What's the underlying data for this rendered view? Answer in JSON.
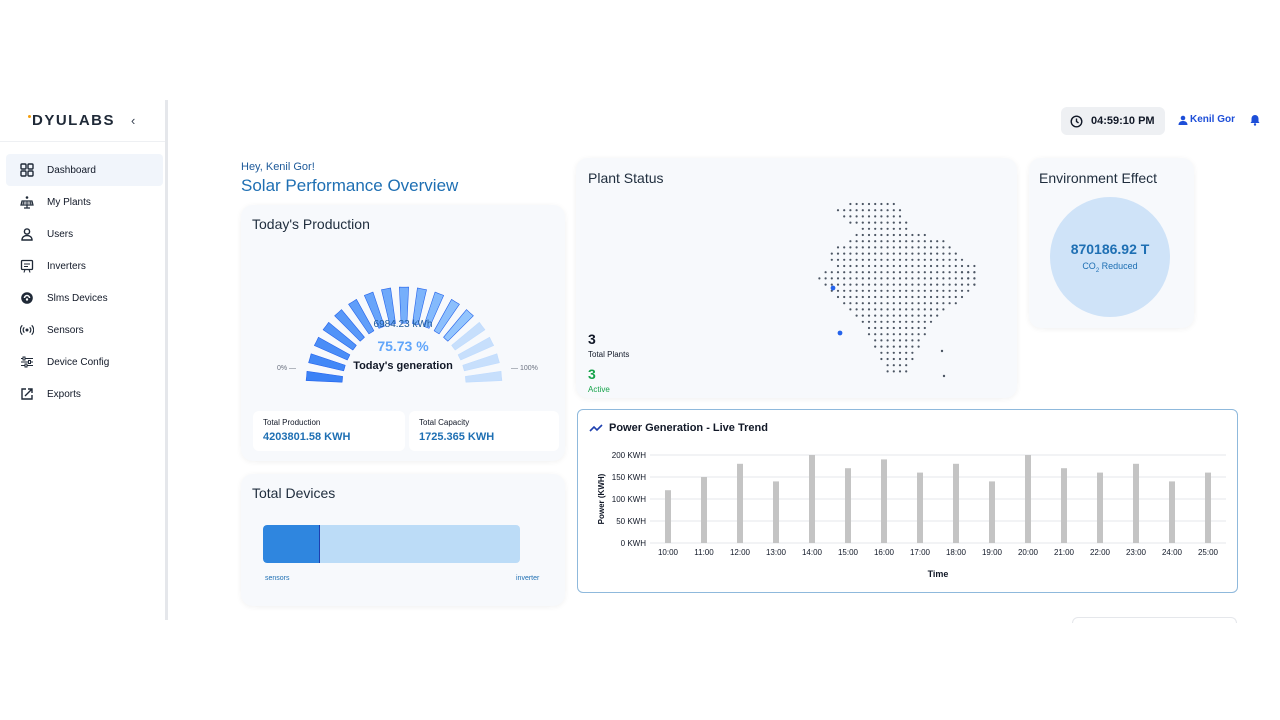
{
  "brand": {
    "logo": "DYULABS",
    "collapse": "‹"
  },
  "sidebar": {
    "items": [
      {
        "label": "Dashboard",
        "icon": "grid-icon"
      },
      {
        "label": "My Plants",
        "icon": "solar-panel-icon"
      },
      {
        "label": "Users",
        "icon": "user-icon"
      },
      {
        "label": "Inverters",
        "icon": "inverter-icon"
      },
      {
        "label": "Slms Devices",
        "icon": "device-icon"
      },
      {
        "label": "Sensors",
        "icon": "sensor-icon"
      },
      {
        "label": "Device Config",
        "icon": "sliders-icon"
      },
      {
        "label": "Exports",
        "icon": "export-icon"
      }
    ]
  },
  "header": {
    "time": "04:59:10 PM",
    "user": "Kenil Gor"
  },
  "greeting": "Hey, Kenil Gor!",
  "title": "Solar Performance Overview",
  "production": {
    "title": "Today's Production",
    "kwh": "6984.23 kWh",
    "percent": "75.73 %",
    "percent_value": 75.73,
    "label": "Today's generation",
    "min_label": "0% —",
    "max_label": "— 100%",
    "total_production_label": "Total Production",
    "total_production_value": "4203801.58 KWH",
    "total_capacity_label": "Total Capacity",
    "total_capacity_value": "1725.365 KWH"
  },
  "devices": {
    "title": "Total Devices",
    "left_label": "sensors",
    "right_label": "inverter",
    "sensors_fraction": 0.22
  },
  "plant_status": {
    "title": "Plant Status",
    "total_plants": "3",
    "total_plants_label": "Total Plants",
    "active": "3",
    "active_label": "Active"
  },
  "environment": {
    "title": "Environment Effect",
    "value": "870186.92 T",
    "label_pre": "CO",
    "label_sub": "2",
    "label_post": " Reduced"
  },
  "colors": {
    "accent": "#1e6fb3",
    "bar": "#c4c4c4",
    "gauge_dark": "#3b82f6",
    "gauge_light": "#bfdbfe"
  },
  "chart_data": {
    "type": "bar",
    "title": "Power Generation - Live Trend",
    "xlabel": "Time",
    "ylabel": "Power (KWH)",
    "categories": [
      "10:00",
      "11:00",
      "12:00",
      "13:00",
      "14:00",
      "15:00",
      "16:00",
      "17:00",
      "18:00",
      "19:00",
      "20:00",
      "21:00",
      "22:00",
      "23:00",
      "24:00",
      "25:00"
    ],
    "values": [
      120,
      150,
      180,
      140,
      200,
      170,
      190,
      160,
      180,
      140,
      200,
      170,
      160,
      180,
      140,
      160
    ],
    "ylim": [
      0,
      200
    ],
    "yticks": [
      "0 KWH",
      "50 KWH",
      "100 KWH",
      "150 KWH",
      "200 KWH"
    ],
    "grid": true
  }
}
